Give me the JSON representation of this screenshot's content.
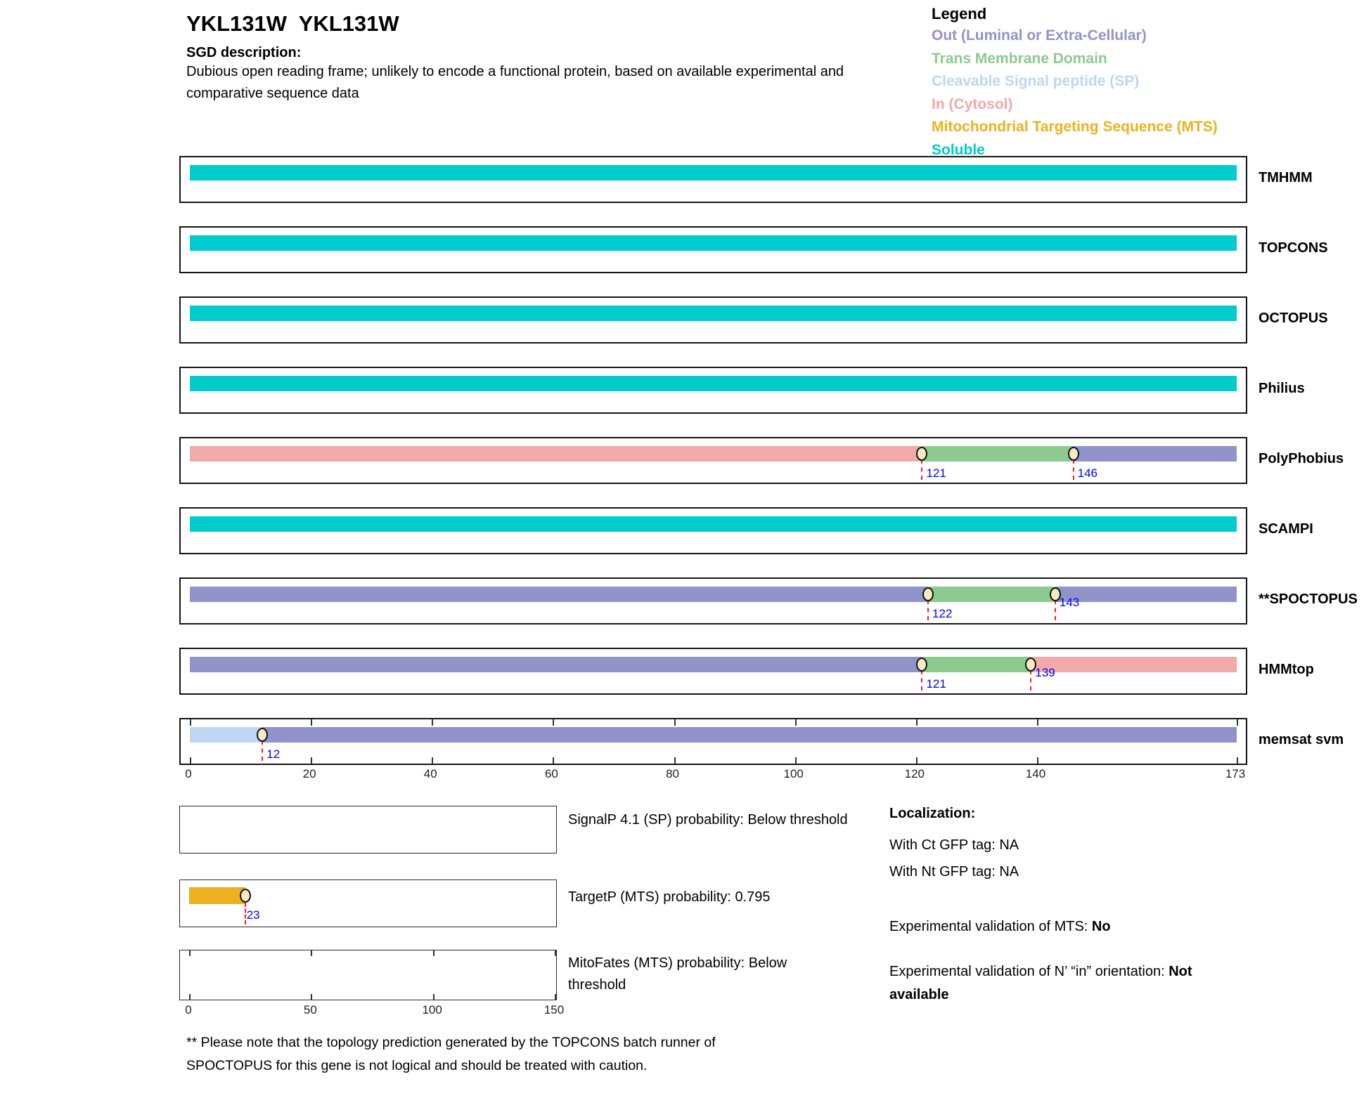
{
  "header": {
    "title": "YKL131W  YKL131W",
    "sgd_label": "SGD description:",
    "sgd_lines": [
      "Dubious open reading frame; unlikely to encode a functional protein, based on available experimental and",
      "comparative sequence data"
    ]
  },
  "legend": {
    "title": "Legend",
    "items": [
      {
        "key": "out",
        "label": "Out (Luminal or Extra-Cellular)"
      },
      {
        "key": "tm",
        "label": "Trans Membrane Domain"
      },
      {
        "key": "sp",
        "label": "Cleavable Signal peptide (SP)"
      },
      {
        "key": "in",
        "label": "In (Cytosol)"
      },
      {
        "key": "mts",
        "label": "Mitochondrial Targeting Sequence (MTS)"
      },
      {
        "key": "soluble",
        "label": "Soluble"
      }
    ]
  },
  "palette": {
    "out": "#9094c9",
    "tm": "#8cca8f",
    "sp": "#bdd7f2",
    "in": "#f2a9ac",
    "mts": "#edb120",
    "soluble": "#00cbcd",
    "boundary_line": "#ff1a1a",
    "boundary_label": "#0000ff",
    "marker_fill": "#f5e9c6"
  },
  "chart_data": {
    "type": "bar",
    "variant": "protein-topology-span-tracks",
    "title": "Topology predictions for YKL131W",
    "axis": {
      "xlim": [
        0,
        173
      ],
      "xticks": [
        0,
        20,
        40,
        60,
        80,
        100,
        120,
        140,
        173
      ]
    },
    "tracks": [
      {
        "name": "TMHMM",
        "segments": [
          {
            "region": "soluble",
            "start": 0,
            "end": 173
          }
        ],
        "markers": [],
        "show_ticks": false
      },
      {
        "name": "TOPCONS",
        "segments": [
          {
            "region": "soluble",
            "start": 0,
            "end": 173
          }
        ],
        "markers": [],
        "show_ticks": false
      },
      {
        "name": "OCTOPUS",
        "segments": [
          {
            "region": "soluble",
            "start": 0,
            "end": 173
          }
        ],
        "markers": [],
        "show_ticks": false
      },
      {
        "name": "Philius",
        "segments": [
          {
            "region": "soluble",
            "start": 0,
            "end": 173
          }
        ],
        "markers": [],
        "show_ticks": false
      },
      {
        "name": "PolyPhobius",
        "segments": [
          {
            "region": "in",
            "start": 0,
            "end": 121
          },
          {
            "region": "tm",
            "start": 121,
            "end": 146
          },
          {
            "region": "out",
            "start": 146,
            "end": 173
          }
        ],
        "markers": [
          {
            "pos": 121,
            "label": "121",
            "level": "low"
          },
          {
            "pos": 146,
            "label": "146",
            "level": "low"
          }
        ],
        "show_ticks": false
      },
      {
        "name": "SCAMPI",
        "segments": [
          {
            "region": "soluble",
            "start": 0,
            "end": 173
          }
        ],
        "markers": [],
        "show_ticks": false
      },
      {
        "name": "**SPOCTOPUS",
        "segments": [
          {
            "region": "out",
            "start": 0,
            "end": 122
          },
          {
            "region": "tm",
            "start": 122,
            "end": 143
          },
          {
            "region": "out",
            "start": 143,
            "end": 173
          }
        ],
        "markers": [
          {
            "pos": 122,
            "label": "122",
            "level": "low"
          },
          {
            "pos": 143,
            "label": "143",
            "level": "high"
          }
        ],
        "show_ticks": false
      },
      {
        "name": "HMMtop",
        "segments": [
          {
            "region": "out",
            "start": 0,
            "end": 121
          },
          {
            "region": "tm",
            "start": 121,
            "end": 139
          },
          {
            "region": "in",
            "start": 139,
            "end": 173
          }
        ],
        "markers": [
          {
            "pos": 121,
            "label": "121",
            "level": "low"
          },
          {
            "pos": 139,
            "label": "139",
            "level": "high"
          }
        ],
        "show_ticks": false
      },
      {
        "name": "memsat svm",
        "segments": [
          {
            "region": "sp",
            "start": 0,
            "end": 12
          },
          {
            "region": "out",
            "start": 12,
            "end": 173
          }
        ],
        "markers": [
          {
            "pos": 12,
            "label": "12",
            "level": "low"
          }
        ],
        "show_ticks": true
      }
    ],
    "mini_xlim": [
      0,
      150
    ],
    "mini_plots": [
      {
        "caption_lines": [
          "SignalP 4.1 (SP) probability: Below threshold"
        ],
        "segments": [],
        "markers": [],
        "ticks": [],
        "tick_labels": []
      },
      {
        "caption_lines": [
          "TargetP (MTS) probability: 0.795"
        ],
        "segments": [
          {
            "region": "mts",
            "start": 0,
            "end": 23
          }
        ],
        "markers": [
          {
            "pos": 23,
            "label": "23"
          }
        ],
        "ticks": [],
        "tick_labels": []
      },
      {
        "caption_lines": [
          "MitoFates (MTS) probability: Below",
          "threshold"
        ],
        "segments": [],
        "markers": [],
        "ticks": [
          0,
          50,
          100,
          150
        ],
        "tick_labels": [
          0,
          50,
          100,
          150
        ]
      }
    ]
  },
  "localization": {
    "title": "Localization:",
    "lines": [
      "With Ct GFP tag: NA",
      "With Nt GFP tag: NA"
    ],
    "mts_label": "Experimental validation of MTS: ",
    "mts_value": "No",
    "orientation_label": "Experimental validation of N’ “in” orientation: ",
    "orientation_value": "Not available"
  },
  "footnote_lines": [
    "** Please note that the topology prediction generated by the TOPCONS batch runner of",
    "SPOCTOPUS for this gene is not logical and should be treated with caution."
  ]
}
